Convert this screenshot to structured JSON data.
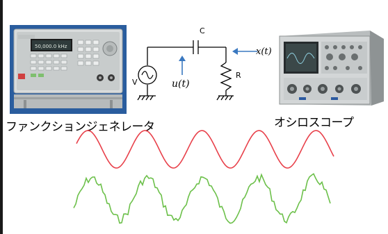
{
  "labels": {
    "function_generator": "ファンクションジェネレータ",
    "oscilloscope": "オシロスコープ"
  },
  "circuit": {
    "capacitor": "C",
    "resistor": "R",
    "source": "V",
    "input_signal": "u(t)",
    "output_signal": "x(t)"
  },
  "function_generator_display": "50,000.0 kHz",
  "colors": {
    "input_wave": "#e8404a",
    "output_wave": "#6cc04a",
    "arrow": "#3a78c0",
    "panel_blue": "#2c5aa0"
  }
}
